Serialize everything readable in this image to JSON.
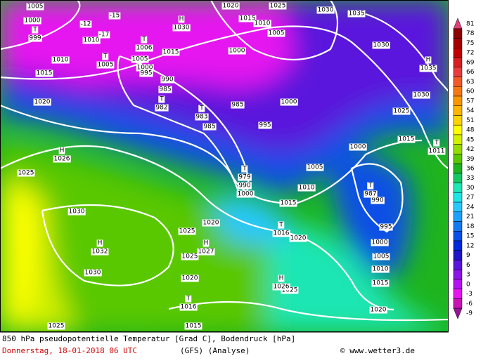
{
  "map": {
    "isobar_labels": [
      "1005",
      "1000",
      "1010",
      "-12",
      "-17",
      "-15",
      "1020",
      "1025",
      "1030",
      "1035",
      "1015",
      "1010",
      "1005",
      "1000",
      "1015",
      "1005",
      "1000",
      "995",
      "1010",
      "1015",
      "990",
      "985",
      "985",
      "985",
      "1000",
      "995",
      "1020",
      "1025",
      "1030",
      "1030",
      "1025",
      "1015",
      "1000",
      "1005",
      "1010",
      "990",
      "990",
      "1000",
      "995",
      "1000",
      "1005",
      "1010",
      "1015",
      "1020",
      "1015",
      "1020",
      "1030",
      "1030",
      "1025",
      "1020",
      "1025",
      "1020",
      "1025",
      "1025",
      "1015"
    ],
    "pressure_centers": [
      {
        "letter": "T",
        "label": "999"
      },
      {
        "letter": "H",
        "label": "1030"
      },
      {
        "letter": "T",
        "label": "1006"
      },
      {
        "letter": "T",
        "label": "1005"
      },
      {
        "letter": "T",
        "label": "982"
      },
      {
        "letter": "T",
        "label": "983"
      },
      {
        "letter": "H",
        "label": "1026"
      },
      {
        "letter": "H",
        "label": "1035"
      },
      {
        "letter": "T",
        "label": "1011"
      },
      {
        "letter": "T",
        "label": "987"
      },
      {
        "letter": "T",
        "label": "979"
      },
      {
        "letter": "T",
        "label": "1016"
      },
      {
        "letter": "H",
        "label": "1032"
      },
      {
        "letter": "H",
        "label": "1027"
      },
      {
        "letter": "H",
        "label": "1026"
      },
      {
        "letter": "T",
        "label": "1016"
      }
    ]
  },
  "colorbar": {
    "values": [
      81,
      78,
      75,
      72,
      69,
      66,
      63,
      60,
      57,
      54,
      51,
      48,
      45,
      42,
      39,
      36,
      33,
      30,
      27,
      24,
      21,
      18,
      15,
      12,
      9,
      6,
      3,
      0,
      -3,
      -6,
      -9
    ],
    "colors": [
      "#e0407a",
      "#8b0000",
      "#a50000",
      "#c00000",
      "#d81e1e",
      "#e83c3c",
      "#f05a28",
      "#f57814",
      "#fa9600",
      "#ffb400",
      "#ffd200",
      "#ffff00",
      "#d2f000",
      "#96dc00",
      "#5ac800",
      "#1eb41e",
      "#14c864",
      "#1ee6b4",
      "#1ee6e6",
      "#28c8ff",
      "#1ea0ff",
      "#1478f0",
      "#0a50e6",
      "#0028dc",
      "#1e14c8",
      "#5a14dc",
      "#8c14e6",
      "#b414f0",
      "#e614f0",
      "#c814b4",
      "#961496"
    ]
  },
  "footer": {
    "title": "850 hPa pseudopotentielle Temperatur [Grad C], Bodendruck [hPa]",
    "date": "Donnerstag, 18-01-2018  06 UTC",
    "model": "(GFS)  (Analyse)",
    "credit": "© www.wetter3.de"
  }
}
